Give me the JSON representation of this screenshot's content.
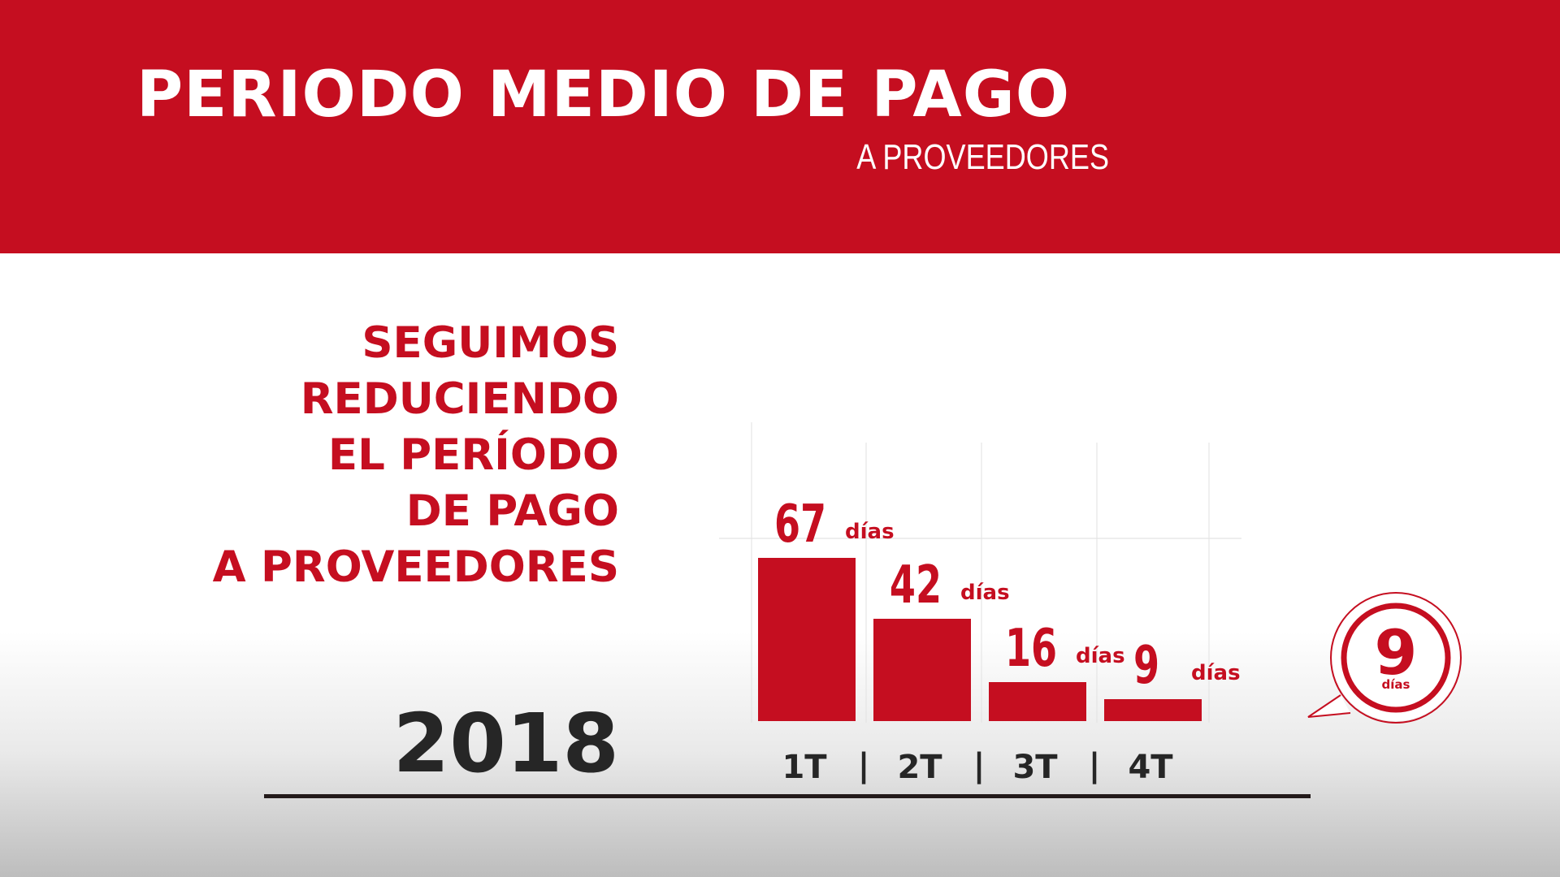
{
  "header": {
    "title": "PERIODO MEDIO DE PAGO",
    "subtitle": "A PROVEEDORES"
  },
  "headline": {
    "lines": [
      "SEGUIMOS",
      "REDUCIENDO",
      "EL PERÍODO",
      "DE PAGO",
      "A PROVEEDORES"
    ]
  },
  "year": "2018",
  "colors": {
    "accent": "#c50e20",
    "text_dark": "#262626"
  },
  "chart_data": {
    "type": "bar",
    "categories": [
      "1T",
      "2T",
      "3T",
      "4T"
    ],
    "values": [
      67,
      42,
      16,
      9
    ],
    "unit": "días",
    "separator": "|",
    "title": "",
    "xlabel": "",
    "ylabel": "",
    "grid": true,
    "legend": "none"
  },
  "badge": {
    "value": "9",
    "unit": "días"
  }
}
